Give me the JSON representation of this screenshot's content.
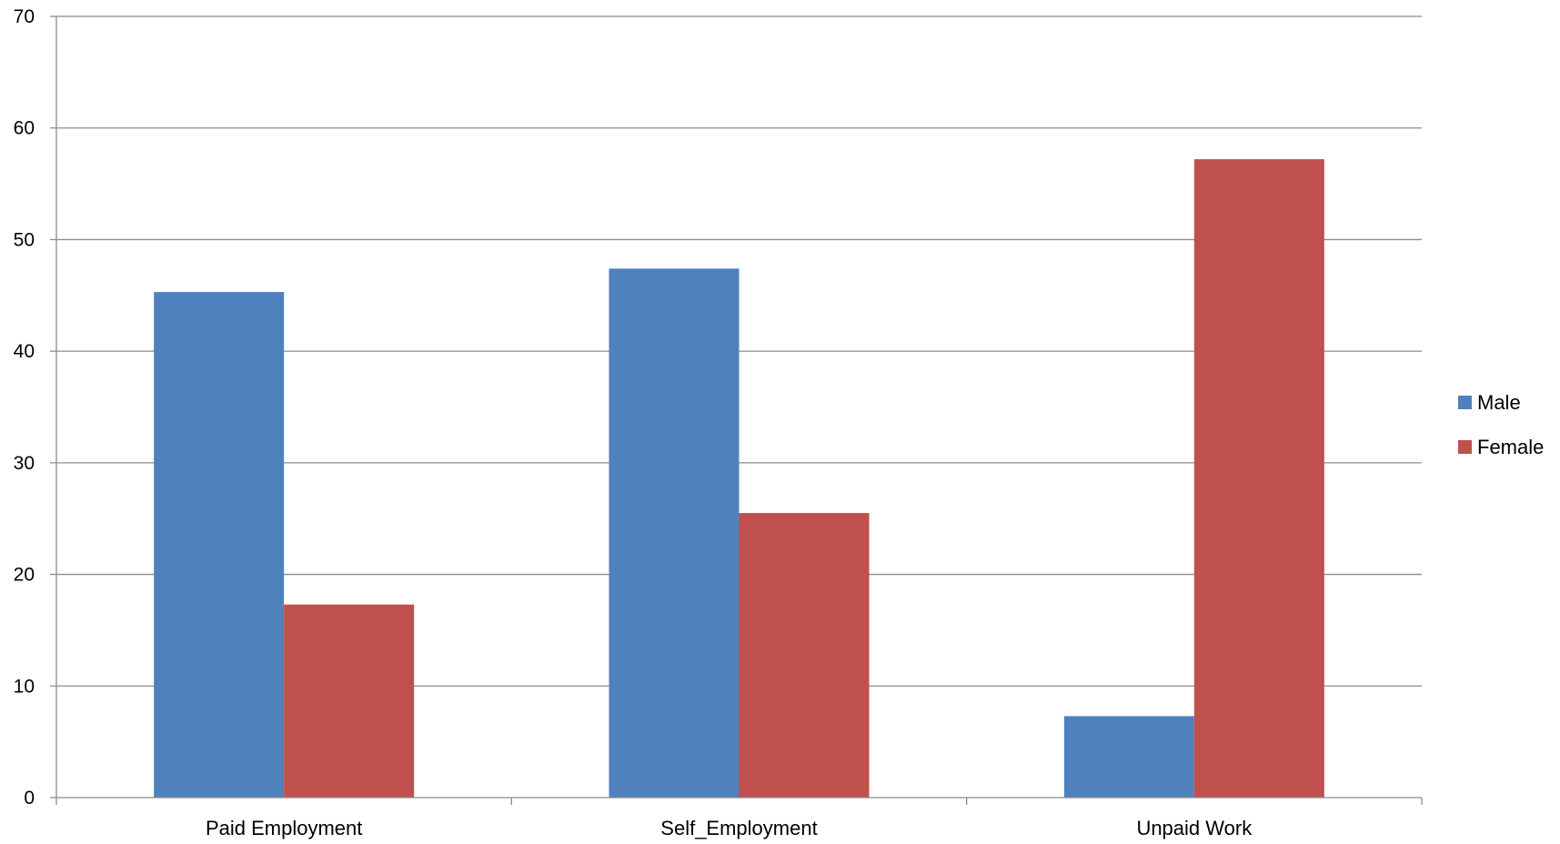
{
  "chart_data": {
    "type": "bar",
    "categories": [
      "Paid Employment",
      "Self_Employment",
      "Unpaid Work"
    ],
    "series": [
      {
        "name": "Male",
        "color": "#4F81BD",
        "values": [
          45.3,
          47.4,
          7.3
        ]
      },
      {
        "name": "Female",
        "color": "#C0504D",
        "values": [
          17.3,
          25.5,
          57.2
        ]
      }
    ],
    "title": "",
    "xlabel": "",
    "ylabel": "",
    "ylim": [
      0,
      70
    ],
    "yticks": [
      0,
      10,
      20,
      30,
      40,
      50,
      60,
      70
    ],
    "grid": true,
    "legend": "right"
  }
}
